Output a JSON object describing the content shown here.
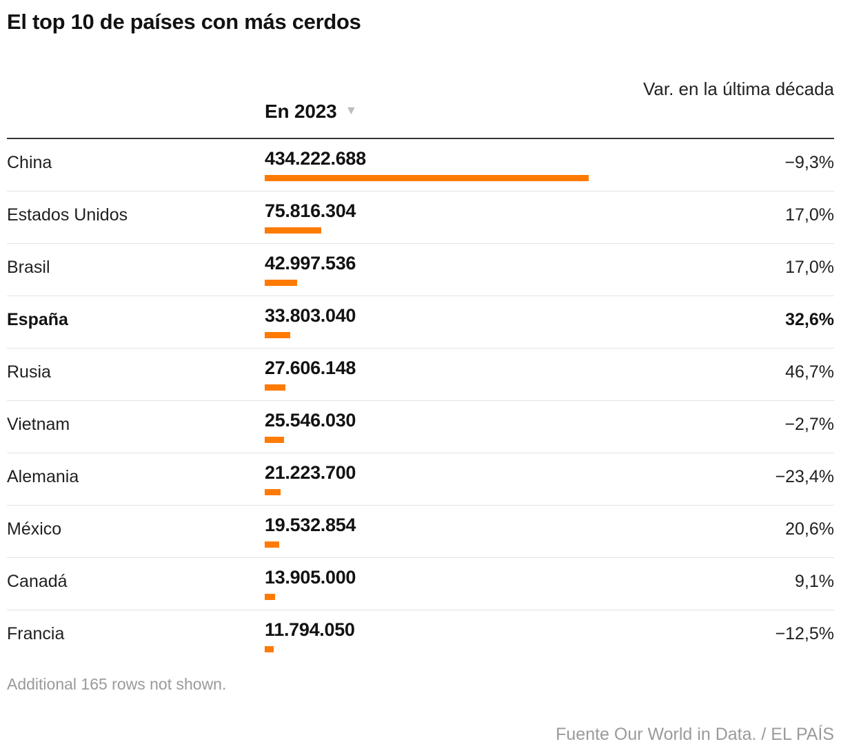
{
  "chart_data": {
    "type": "table",
    "title": "El top 10 de países con más cerdos",
    "columns": {
      "country": "",
      "value": "En 2023",
      "variation": "Var. en la última década"
    },
    "sort_icon": "sort-descending-triangle",
    "rows": [
      {
        "country": "China",
        "value_label": "434.222.688",
        "value": 434222688,
        "variation": "−9,3%",
        "highlight": false
      },
      {
        "country": "Estados Unidos",
        "value_label": "75.816.304",
        "value": 75816304,
        "variation": "17,0%",
        "highlight": false
      },
      {
        "country": "Brasil",
        "value_label": "42.997.536",
        "value": 42997536,
        "variation": "17,0%",
        "highlight": false
      },
      {
        "country": "España",
        "value_label": "33.803.040",
        "value": 33803040,
        "variation": "32,6%",
        "highlight": true
      },
      {
        "country": "Rusia",
        "value_label": "27.606.148",
        "value": 27606148,
        "variation": "46,7%",
        "highlight": false
      },
      {
        "country": "Vietnam",
        "value_label": "25.546.030",
        "value": 25546030,
        "variation": "−2,7%",
        "highlight": false
      },
      {
        "country": "Alemania",
        "value_label": "21.223.700",
        "value": 21223700,
        "variation": "−23,4%",
        "highlight": false
      },
      {
        "country": "México",
        "value_label": "19.532.854",
        "value": 19532854,
        "variation": "20,6%",
        "highlight": false
      },
      {
        "country": "Canadá",
        "value_label": "13.905.000",
        "value": 13905000,
        "variation": "9,1%",
        "highlight": false
      },
      {
        "country": "Francia",
        "value_label": "11.794.050",
        "value": 11794050,
        "variation": "−12,5%",
        "highlight": false
      }
    ],
    "bar_color": "#ff7a00",
    "footnote": "Additional 165 rows not shown.",
    "source": "Fuente Our World in Data. / EL PAÍS"
  }
}
